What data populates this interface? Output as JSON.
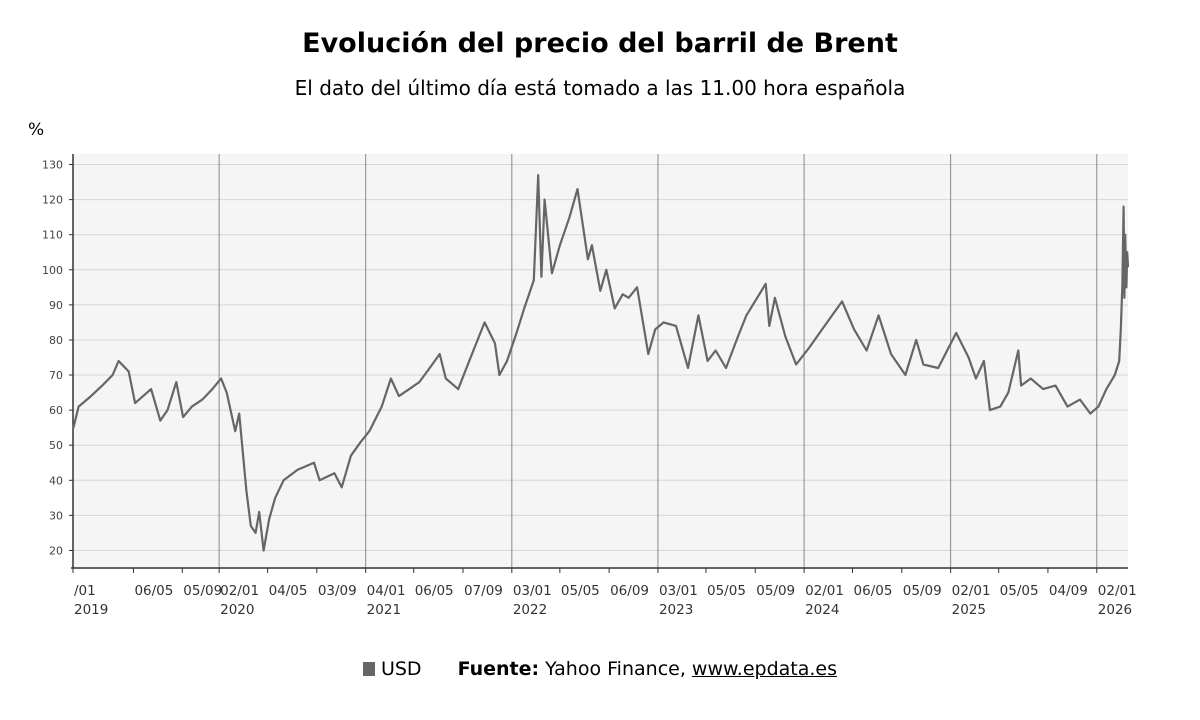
{
  "chart_data": {
    "type": "line",
    "title": "Evolución del precio del barril de Brent",
    "subtitle": "El dato del último día está tomado a las 11.00 hora española",
    "ylabel": "%",
    "ylim": [
      15,
      133
    ],
    "yticks": [
      20,
      30,
      40,
      50,
      60,
      70,
      80,
      90,
      100,
      110,
      120,
      130
    ],
    "xlim": [
      "2019-01-01",
      "2026-03-20"
    ],
    "grid": true,
    "legend_position": "bottom",
    "x_tick_labels": [
      {
        "date": "2019-01-01",
        "day": "/01",
        "year": "2019"
      },
      {
        "date": "2019-06-01",
        "day": "06/05",
        "year": ""
      },
      {
        "date": "2019-10-01",
        "day": "05/09",
        "year": ""
      },
      {
        "date": "2020-01-01",
        "day": "02/01",
        "year": "2020"
      },
      {
        "date": "2020-05-01",
        "day": "04/05",
        "year": ""
      },
      {
        "date": "2020-09-01",
        "day": "03/09",
        "year": ""
      },
      {
        "date": "2021-01-01",
        "day": "04/01",
        "year": "2021"
      },
      {
        "date": "2021-05-01",
        "day": "06/05",
        "year": ""
      },
      {
        "date": "2021-09-01",
        "day": "07/09",
        "year": ""
      },
      {
        "date": "2022-01-01",
        "day": "03/01",
        "year": "2022"
      },
      {
        "date": "2022-05-01",
        "day": "05/05",
        "year": ""
      },
      {
        "date": "2022-09-01",
        "day": "06/09",
        "year": ""
      },
      {
        "date": "2023-01-01",
        "day": "03/01",
        "year": "2023"
      },
      {
        "date": "2023-05-01",
        "day": "05/05",
        "year": ""
      },
      {
        "date": "2023-09-01",
        "day": "05/09",
        "year": ""
      },
      {
        "date": "2024-01-01",
        "day": "02/01",
        "year": "2024"
      },
      {
        "date": "2024-05-01",
        "day": "06/05",
        "year": ""
      },
      {
        "date": "2024-09-01",
        "day": "05/09",
        "year": ""
      },
      {
        "date": "2025-01-01",
        "day": "02/01",
        "year": "2025"
      },
      {
        "date": "2025-05-01",
        "day": "05/05",
        "year": ""
      },
      {
        "date": "2025-09-01",
        "day": "04/09",
        "year": ""
      },
      {
        "date": "2026-01-01",
        "day": "02/01",
        "year": "2026"
      }
    ],
    "year_lines": [
      "2020-01-01",
      "2021-01-01",
      "2022-01-01",
      "2023-01-01",
      "2024-01-01",
      "2025-01-01",
      "2026-01-01"
    ],
    "series": [
      {
        "name": "USD",
        "color": "#666666",
        "points": [
          [
            "2019-01-02",
            55
          ],
          [
            "2019-01-15",
            61
          ],
          [
            "2019-02-15",
            64
          ],
          [
            "2019-03-15",
            67
          ],
          [
            "2019-04-10",
            70
          ],
          [
            "2019-04-25",
            74
          ],
          [
            "2019-05-20",
            71
          ],
          [
            "2019-06-05",
            62
          ],
          [
            "2019-06-25",
            64
          ],
          [
            "2019-07-15",
            66
          ],
          [
            "2019-08-07",
            57
          ],
          [
            "2019-08-25",
            60
          ],
          [
            "2019-09-16",
            68
          ],
          [
            "2019-10-03",
            58
          ],
          [
            "2019-10-25",
            61
          ],
          [
            "2019-11-20",
            63
          ],
          [
            "2019-12-15",
            66
          ],
          [
            "2020-01-06",
            69
          ],
          [
            "2020-01-20",
            65
          ],
          [
            "2020-02-10",
            54
          ],
          [
            "2020-02-20",
            59
          ],
          [
            "2020-03-09",
            37
          ],
          [
            "2020-03-20",
            27
          ],
          [
            "2020-04-01",
            25
          ],
          [
            "2020-04-10",
            31
          ],
          [
            "2020-04-21",
            20
          ],
          [
            "2020-05-05",
            29
          ],
          [
            "2020-05-20",
            35
          ],
          [
            "2020-06-10",
            40
          ],
          [
            "2020-07-15",
            43
          ],
          [
            "2020-08-25",
            45
          ],
          [
            "2020-09-08",
            40
          ],
          [
            "2020-10-15",
            42
          ],
          [
            "2020-11-02",
            38
          ],
          [
            "2020-11-25",
            47
          ],
          [
            "2020-12-20",
            51
          ],
          [
            "2021-01-10",
            54
          ],
          [
            "2021-02-10",
            61
          ],
          [
            "2021-03-05",
            69
          ],
          [
            "2021-03-25",
            64
          ],
          [
            "2021-04-20",
            66
          ],
          [
            "2021-05-15",
            68
          ],
          [
            "2021-06-10",
            72
          ],
          [
            "2021-07-05",
            76
          ],
          [
            "2021-07-20",
            69
          ],
          [
            "2021-08-20",
            66
          ],
          [
            "2021-09-20",
            75
          ],
          [
            "2021-10-25",
            85
          ],
          [
            "2021-11-20",
            79
          ],
          [
            "2021-12-01",
            70
          ],
          [
            "2021-12-20",
            74
          ],
          [
            "2022-01-10",
            81
          ],
          [
            "2022-02-01",
            89
          ],
          [
            "2022-02-25",
            97
          ],
          [
            "2022-03-08",
            127
          ],
          [
            "2022-03-16",
            98
          ],
          [
            "2022-03-24",
            120
          ],
          [
            "2022-04-11",
            99
          ],
          [
            "2022-05-01",
            107
          ],
          [
            "2022-05-25",
            115
          ],
          [
            "2022-06-14",
            123
          ],
          [
            "2022-07-10",
            103
          ],
          [
            "2022-07-20",
            107
          ],
          [
            "2022-08-10",
            94
          ],
          [
            "2022-08-25",
            100
          ],
          [
            "2022-09-15",
            89
          ],
          [
            "2022-10-05",
            93
          ],
          [
            "2022-10-20",
            92
          ],
          [
            "2022-11-10",
            95
          ],
          [
            "2022-12-08",
            76
          ],
          [
            "2022-12-25",
            83
          ],
          [
            "2023-01-15",
            85
          ],
          [
            "2023-02-15",
            84
          ],
          [
            "2023-03-17",
            72
          ],
          [
            "2023-04-12",
            87
          ],
          [
            "2023-05-05",
            74
          ],
          [
            "2023-05-25",
            77
          ],
          [
            "2023-06-20",
            72
          ],
          [
            "2023-07-20",
            81
          ],
          [
            "2023-08-10",
            87
          ],
          [
            "2023-09-27",
            96
          ],
          [
            "2023-10-06",
            84
          ],
          [
            "2023-10-20",
            92
          ],
          [
            "2023-11-15",
            81
          ],
          [
            "2023-12-12",
            73
          ],
          [
            "2024-01-15",
            78
          ],
          [
            "2024-02-15",
            83
          ],
          [
            "2024-04-05",
            91
          ],
          [
            "2024-05-05",
            83
          ],
          [
            "2024-06-05",
            77
          ],
          [
            "2024-07-05",
            87
          ],
          [
            "2024-08-05",
            76
          ],
          [
            "2024-09-10",
            70
          ],
          [
            "2024-10-07",
            80
          ],
          [
            "2024-10-25",
            73
          ],
          [
            "2024-12-01",
            72
          ],
          [
            "2025-01-15",
            82
          ],
          [
            "2025-02-15",
            75
          ],
          [
            "2025-03-05",
            69
          ],
          [
            "2025-03-25",
            74
          ],
          [
            "2025-04-09",
            60
          ],
          [
            "2025-05-05",
            61
          ],
          [
            "2025-05-25",
            65
          ],
          [
            "2025-06-19",
            77
          ],
          [
            "2025-06-26",
            67
          ],
          [
            "2025-07-20",
            69
          ],
          [
            "2025-08-20",
            66
          ],
          [
            "2025-09-20",
            67
          ],
          [
            "2025-10-20",
            61
          ],
          [
            "2025-11-20",
            63
          ],
          [
            "2025-12-16",
            59
          ],
          [
            "2026-01-05",
            61
          ],
          [
            "2026-01-25",
            66
          ],
          [
            "2026-02-15",
            70
          ],
          [
            "2026-02-26",
            74
          ],
          [
            "2026-03-02",
            83
          ],
          [
            "2026-03-06",
            96
          ],
          [
            "2026-03-09",
            118
          ],
          [
            "2026-03-11",
            92
          ],
          [
            "2026-03-13",
            110
          ],
          [
            "2026-03-16",
            95
          ],
          [
            "2026-03-18",
            105
          ],
          [
            "2026-03-20",
            101
          ]
        ]
      }
    ]
  },
  "footer": {
    "legend_label": "USD",
    "source_label": "Fuente:",
    "source_text": "Yahoo Finance,",
    "source_link": "www.epdata.es"
  }
}
